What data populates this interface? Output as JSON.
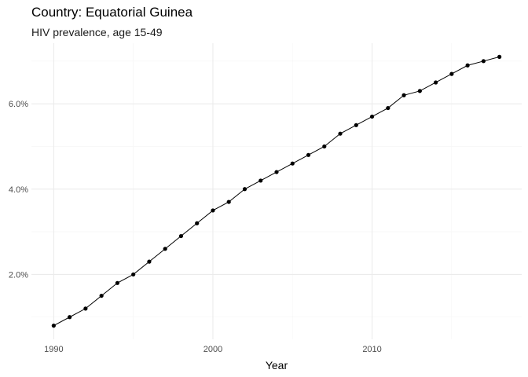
{
  "chart_data": {
    "type": "line",
    "title": "Country: Equatorial Guinea",
    "subtitle": "HIV prevalence, age 15-49",
    "xlabel": "Year",
    "ylabel": "",
    "x": [
      1990,
      1991,
      1992,
      1993,
      1994,
      1995,
      1996,
      1997,
      1998,
      1999,
      2000,
      2001,
      2002,
      2003,
      2004,
      2005,
      2006,
      2007,
      2008,
      2009,
      2010,
      2011,
      2012,
      2013,
      2014,
      2015,
      2016,
      2017,
      2018
    ],
    "series": [
      {
        "values": [
          0.8,
          1.0,
          1.2,
          1.5,
          1.8,
          2.0,
          2.3,
          2.6,
          2.9,
          3.2,
          3.5,
          3.7,
          4.0,
          4.2,
          4.4,
          4.6,
          4.8,
          5.0,
          5.3,
          5.5,
          5.7,
          5.9,
          6.2,
          6.3,
          6.5,
          6.7,
          6.9,
          7.0,
          7.1
        ]
      }
    ],
    "xlim": [
      1988.6,
      2019.4
    ],
    "ylim": [
      0.48,
      7.42
    ],
    "x_ticks": [
      1990,
      2000,
      2010
    ],
    "x_tick_labels": [
      "1990",
      "2000",
      "2010"
    ],
    "y_ticks": [
      2,
      4,
      6
    ],
    "y_tick_labels": [
      "2.0%",
      "4.0%",
      "6.0%"
    ],
    "grid": true,
    "legend": "none",
    "colors": {
      "line": "#000000",
      "point": "#000000",
      "grid_major": "#ebebeb",
      "grid_minor": "#f5f5f5"
    }
  }
}
